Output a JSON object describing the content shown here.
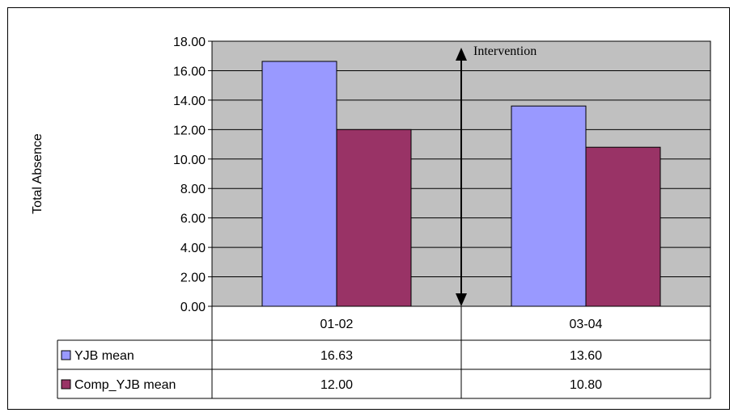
{
  "chart_data": {
    "type": "bar",
    "title": "",
    "xlabel": "",
    "ylabel": "Total Absence",
    "ylim": [
      0,
      18
    ],
    "yticks": [
      "0.00",
      "2.00",
      "4.00",
      "6.00",
      "8.00",
      "10.00",
      "12.00",
      "14.00",
      "16.00",
      "18.00"
    ],
    "categories": [
      "01-02",
      "03-04"
    ],
    "series": [
      {
        "name": "YJB mean",
        "values": [
          16.63,
          13.6
        ],
        "labels": [
          "16.63",
          "13.60"
        ],
        "color": "#9999ff"
      },
      {
        "name": "Comp_YJB mean",
        "values": [
          12.0,
          10.8
        ],
        "labels": [
          "12.00",
          "10.80"
        ],
        "color": "#993366"
      }
    ],
    "annotation": {
      "text": "Intervention",
      "between_categories": [
        "01-02",
        "03-04"
      ]
    },
    "plot_background": "#c0c0c0",
    "grid": true,
    "legend": "data-table"
  }
}
